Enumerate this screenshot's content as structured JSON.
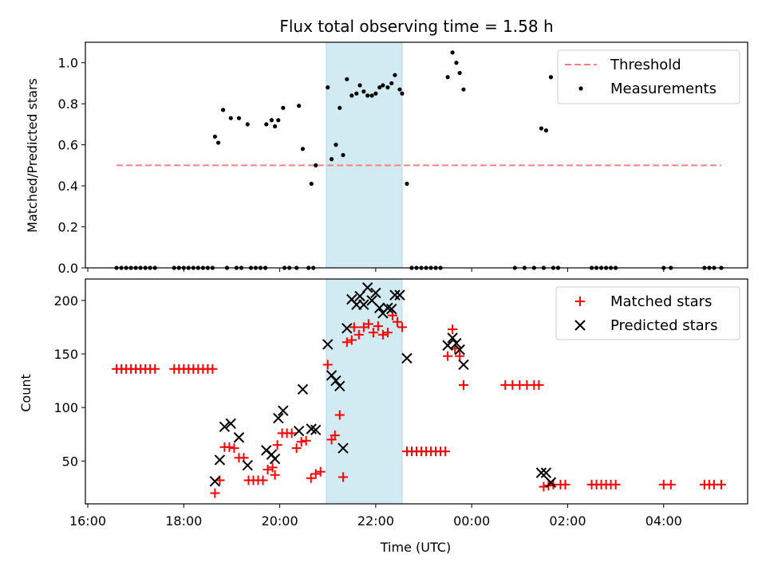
{
  "title": "Flux total observing time = 1.58 h",
  "colors": {
    "threshold": "#ff7f7f",
    "measurement": "#000000",
    "matched": "#ff0000",
    "predicted": "#000000",
    "band": "#add8e6"
  },
  "chart_data": [
    {
      "type": "scatter",
      "ylabel": "Matched/Predicted stars",
      "xlabel": "",
      "ylim": [
        0,
        1.1
      ],
      "x_range_hours": [
        15.95,
        29.75
      ],
      "yticks": [
        0.0,
        0.2,
        0.4,
        0.6,
        0.8,
        1.0
      ],
      "ytick_labels": [
        "0.0",
        "0.2",
        "0.4",
        "0.6",
        "0.8",
        "1.0"
      ],
      "highlight_band_hours": [
        20.97,
        22.55
      ],
      "legend": {
        "position": "top-right",
        "entries": [
          "Threshold",
          "Measurements"
        ]
      },
      "threshold": {
        "name": "Threshold",
        "y": 0.5,
        "x_hours": [
          16.6,
          29.2
        ]
      },
      "series": [
        {
          "name": "Measurements",
          "points": [
            [
              16.6,
              0
            ],
            [
              16.7,
              0
            ],
            [
              16.8,
              0
            ],
            [
              16.9,
              0
            ],
            [
              17.0,
              0
            ],
            [
              17.1,
              0
            ],
            [
              17.2,
              0
            ],
            [
              17.3,
              0
            ],
            [
              17.4,
              0
            ],
            [
              17.8,
              0
            ],
            [
              17.9,
              0
            ],
            [
              18.0,
              0
            ],
            [
              18.1,
              0
            ],
            [
              18.2,
              0
            ],
            [
              18.3,
              0
            ],
            [
              18.4,
              0
            ],
            [
              18.5,
              0
            ],
            [
              18.6,
              0
            ],
            [
              18.9,
              0
            ],
            [
              19.1,
              0
            ],
            [
              19.2,
              0
            ],
            [
              19.4,
              0
            ],
            [
              19.5,
              0
            ],
            [
              19.6,
              0
            ],
            [
              19.7,
              0
            ],
            [
              20.1,
              0
            ],
            [
              20.2,
              0
            ],
            [
              20.35,
              0
            ],
            [
              20.6,
              0
            ],
            [
              20.7,
              0
            ],
            [
              22.75,
              0
            ],
            [
              22.85,
              0
            ],
            [
              22.95,
              0
            ],
            [
              23.05,
              0
            ],
            [
              23.15,
              0
            ],
            [
              23.25,
              0
            ],
            [
              23.35,
              0
            ],
            [
              24.9,
              0
            ],
            [
              25.1,
              0
            ],
            [
              25.3,
              0
            ],
            [
              25.5,
              0
            ],
            [
              25.7,
              0
            ],
            [
              25.8,
              0
            ],
            [
              26.5,
              0
            ],
            [
              26.6,
              0
            ],
            [
              26.7,
              0
            ],
            [
              26.8,
              0
            ],
            [
              26.9,
              0
            ],
            [
              27.0,
              0
            ],
            [
              28.0,
              0
            ],
            [
              28.15,
              0
            ],
            [
              28.85,
              0
            ],
            [
              28.95,
              0
            ],
            [
              29.05,
              0
            ],
            [
              29.2,
              0
            ],
            [
              18.65,
              0.64
            ],
            [
              18.72,
              0.61
            ],
            [
              18.82,
              0.77
            ],
            [
              18.98,
              0.73
            ],
            [
              19.15,
              0.73
            ],
            [
              19.33,
              0.7
            ],
            [
              19.72,
              0.7
            ],
            [
              19.83,
              0.72
            ],
            [
              19.9,
              0.69
            ],
            [
              19.97,
              0.72
            ],
            [
              20.07,
              0.78
            ],
            [
              20.4,
              0.79
            ],
            [
              20.48,
              0.58
            ],
            [
              20.66,
              0.41
            ],
            [
              20.75,
              0.5
            ],
            [
              21.0,
              0.88
            ],
            [
              21.08,
              0.53
            ],
            [
              21.17,
              0.6
            ],
            [
              21.25,
              0.78
            ],
            [
              21.32,
              0.55
            ],
            [
              21.4,
              0.92
            ],
            [
              21.5,
              0.84
            ],
            [
              21.6,
              0.85
            ],
            [
              21.67,
              0.89
            ],
            [
              21.75,
              0.86
            ],
            [
              21.83,
              0.84
            ],
            [
              21.92,
              0.84
            ],
            [
              22.0,
              0.85
            ],
            [
              22.08,
              0.88
            ],
            [
              22.15,
              0.89
            ],
            [
              22.25,
              0.88
            ],
            [
              22.33,
              0.9
            ],
            [
              22.4,
              0.94
            ],
            [
              22.5,
              0.87
            ],
            [
              22.55,
              0.85
            ],
            [
              22.65,
              0.41
            ],
            [
              23.5,
              0.93
            ],
            [
              23.6,
              1.05
            ],
            [
              23.68,
              1.0
            ],
            [
              23.75,
              0.95
            ],
            [
              23.83,
              0.87
            ],
            [
              25.45,
              0.68
            ],
            [
              25.55,
              0.67
            ],
            [
              25.65,
              0.93
            ]
          ]
        }
      ]
    },
    {
      "type": "scatter",
      "ylabel": "Count",
      "xlabel": "Time (UTC)",
      "ylim": [
        10,
        220
      ],
      "x_range_hours": [
        15.95,
        29.75
      ],
      "yticks": [
        50,
        100,
        150,
        200
      ],
      "ytick_labels": [
        "50",
        "100",
        "150",
        "200"
      ],
      "xticks_hours": [
        16,
        18,
        20,
        22,
        24,
        26,
        28
      ],
      "xtick_labels": [
        "16:00",
        "18:00",
        "20:00",
        "22:00",
        "00:00",
        "02:00",
        "04:00"
      ],
      "highlight_band_hours": [
        20.97,
        22.55
      ],
      "legend": {
        "position": "top-right",
        "entries": [
          "Matched stars",
          "Predicted stars"
        ]
      },
      "series": [
        {
          "name": "Matched stars",
          "marker": "plus",
          "points": [
            [
              16.6,
              136
            ],
            [
              16.7,
              136
            ],
            [
              16.8,
              136
            ],
            [
              16.9,
              136
            ],
            [
              17.0,
              136
            ],
            [
              17.1,
              136
            ],
            [
              17.2,
              136
            ],
            [
              17.3,
              136
            ],
            [
              17.4,
              136
            ],
            [
              17.8,
              136
            ],
            [
              17.9,
              136
            ],
            [
              18.0,
              136
            ],
            [
              18.1,
              136
            ],
            [
              18.2,
              136
            ],
            [
              18.3,
              136
            ],
            [
              18.4,
              136
            ],
            [
              18.5,
              136
            ],
            [
              18.6,
              136
            ],
            [
              18.65,
              20
            ],
            [
              18.75,
              32
            ],
            [
              18.85,
              63
            ],
            [
              18.95,
              63
            ],
            [
              19.05,
              62
            ],
            [
              19.15,
              53
            ],
            [
              19.25,
              53
            ],
            [
              19.35,
              32
            ],
            [
              19.45,
              32
            ],
            [
              19.55,
              32
            ],
            [
              19.65,
              32
            ],
            [
              19.75,
              42
            ],
            [
              19.85,
              44
            ],
            [
              19.9,
              37
            ],
            [
              19.95,
              65
            ],
            [
              20.05,
              76
            ],
            [
              20.15,
              76
            ],
            [
              20.25,
              76
            ],
            [
              20.35,
              62
            ],
            [
              20.45,
              68
            ],
            [
              20.55,
              69
            ],
            [
              20.65,
              34
            ],
            [
              20.75,
              38
            ],
            [
              20.85,
              40
            ],
            [
              21.0,
              140
            ],
            [
              21.08,
              70
            ],
            [
              21.15,
              74
            ],
            [
              21.25,
              93
            ],
            [
              21.32,
              35
            ],
            [
              21.4,
              161
            ],
            [
              21.5,
              163
            ],
            [
              21.55,
              175
            ],
            [
              21.65,
              168
            ],
            [
              21.75,
              175
            ],
            [
              21.85,
              178
            ],
            [
              21.95,
              170
            ],
            [
              22.05,
              176
            ],
            [
              22.15,
              168
            ],
            [
              22.25,
              170
            ],
            [
              22.35,
              186
            ],
            [
              22.45,
              180
            ],
            [
              22.55,
              175
            ],
            [
              22.65,
              59
            ],
            [
              22.75,
              59
            ],
            [
              22.85,
              59
            ],
            [
              22.95,
              59
            ],
            [
              23.05,
              59
            ],
            [
              23.15,
              59
            ],
            [
              23.25,
              59
            ],
            [
              23.35,
              59
            ],
            [
              23.45,
              59
            ],
            [
              23.5,
              148
            ],
            [
              23.6,
              173
            ],
            [
              23.65,
              155
            ],
            [
              23.75,
              148
            ],
            [
              23.83,
              121
            ],
            [
              24.7,
              121
            ],
            [
              24.85,
              121
            ],
            [
              25.0,
              121
            ],
            [
              25.15,
              121
            ],
            [
              25.3,
              121
            ],
            [
              25.4,
              121
            ],
            [
              25.5,
              26
            ],
            [
              25.6,
              27
            ],
            [
              25.7,
              28
            ],
            [
              25.85,
              28
            ],
            [
              25.95,
              28
            ],
            [
              26.5,
              28
            ],
            [
              26.6,
              28
            ],
            [
              26.7,
              28
            ],
            [
              26.8,
              28
            ],
            [
              26.9,
              28
            ],
            [
              27.0,
              28
            ],
            [
              28.0,
              28
            ],
            [
              28.15,
              28
            ],
            [
              28.85,
              28
            ],
            [
              28.95,
              28
            ],
            [
              29.05,
              28
            ],
            [
              29.2,
              28
            ]
          ]
        },
        {
          "name": "Predicted stars",
          "marker": "x",
          "points": [
            [
              18.65,
              31
            ],
            [
              18.75,
              51
            ],
            [
              18.85,
              82
            ],
            [
              18.98,
              85
            ],
            [
              19.15,
              72
            ],
            [
              19.33,
              46
            ],
            [
              19.72,
              60
            ],
            [
              19.83,
              56
            ],
            [
              19.9,
              52
            ],
            [
              19.97,
              90
            ],
            [
              20.07,
              97
            ],
            [
              20.4,
              78
            ],
            [
              20.48,
              117
            ],
            [
              20.66,
              80
            ],
            [
              20.75,
              79
            ],
            [
              21.0,
              159
            ],
            [
              21.08,
              130
            ],
            [
              21.17,
              125
            ],
            [
              21.25,
              120
            ],
            [
              21.32,
              62
            ],
            [
              21.4,
              174
            ],
            [
              21.5,
              201
            ],
            [
              21.6,
              196
            ],
            [
              21.67,
              204
            ],
            [
              21.75,
              196
            ],
            [
              21.83,
              212
            ],
            [
              21.92,
              200
            ],
            [
              22.0,
              207
            ],
            [
              22.08,
              193
            ],
            [
              22.15,
              188
            ],
            [
              22.25,
              193
            ],
            [
              22.33,
              192
            ],
            [
              22.4,
              205
            ],
            [
              22.5,
              205
            ],
            [
              22.65,
              146
            ],
            [
              23.5,
              158
            ],
            [
              23.6,
              165
            ],
            [
              23.68,
              160
            ],
            [
              23.75,
              154
            ],
            [
              23.83,
              140
            ],
            [
              25.45,
              39
            ],
            [
              25.55,
              39
            ],
            [
              25.65,
              30
            ]
          ]
        }
      ]
    }
  ]
}
